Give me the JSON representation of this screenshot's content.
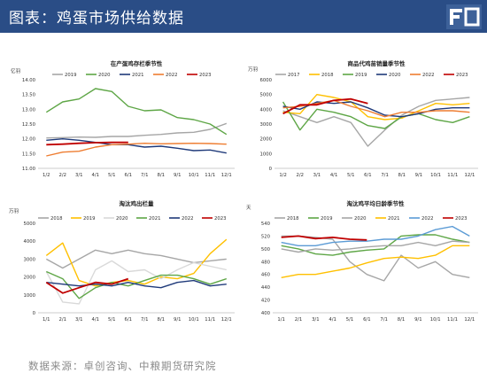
{
  "header": {
    "title": "图表：鸡蛋市场供给数据"
  },
  "source": "数据来源：卓创咨询、中粮期货研究院",
  "chart_data": [
    {
      "type": "line",
      "title": "在产蛋鸡存栏季节性",
      "ylabel": "亿羽",
      "ylim": [
        11.0,
        14.0
      ],
      "yticks": [
        "11.00",
        "11.50",
        "12.00",
        "12.50",
        "13.00",
        "13.50",
        "14.00"
      ],
      "categories": [
        "1/2",
        "2/2",
        "3/1",
        "4/1",
        "5/1",
        "6/1",
        "7/1",
        "8/1",
        "9/1",
        "10/1",
        "11/1",
        "12/1"
      ],
      "legend_position": "top",
      "series": [
        {
          "name": "2019",
          "color": "#a6a6a6",
          "values": [
            12.03,
            12.04,
            12.06,
            12.05,
            12.08,
            12.08,
            12.12,
            12.15,
            12.2,
            12.22,
            12.32,
            12.52
          ]
        },
        {
          "name": "2020",
          "color": "#5ea646",
          "values": [
            12.9,
            13.25,
            13.35,
            13.7,
            13.6,
            13.1,
            12.95,
            12.98,
            12.72,
            12.65,
            12.5,
            12.15
          ]
        },
        {
          "name": "2021",
          "color": "#1f3a7a",
          "values": [
            11.95,
            12.0,
            11.95,
            11.88,
            11.8,
            11.8,
            11.72,
            11.75,
            11.68,
            11.6,
            11.62,
            11.52
          ]
        },
        {
          "name": "2022",
          "color": "#ee7d31",
          "values": [
            11.42,
            11.55,
            11.58,
            11.72,
            11.8,
            11.82,
            11.85,
            11.83,
            11.84,
            11.85,
            11.84,
            11.82
          ]
        },
        {
          "name": "2023",
          "color": "#c00000",
          "values": [
            11.8,
            11.82,
            11.85,
            11.87,
            11.88,
            11.88,
            null,
            null,
            null,
            null,
            null,
            null
          ]
        }
      ]
    },
    {
      "type": "line",
      "title": "商品代鸡苗销量季节性",
      "ylabel": "万羽",
      "ylim": [
        0,
        6000
      ],
      "yticks": [
        "0",
        "1000",
        "2000",
        "3000",
        "4000",
        "5000",
        "6000"
      ],
      "categories": [
        "1/2",
        "2/2",
        "3/1",
        "4/1",
        "5/1",
        "6/1",
        "7/1",
        "8/1",
        "9/1",
        "10/1",
        "11/1",
        "12/1"
      ],
      "legend_position": "top",
      "series": [
        {
          "name": "2017",
          "color": "#a6a6a6",
          "values": [
            3900,
            3500,
            3100,
            3500,
            3100,
            1500,
            2600,
            3600,
            4200,
            4600,
            4700,
            4800
          ]
        },
        {
          "name": "2018",
          "color": "#ffc000",
          "values": [
            3800,
            3700,
            5000,
            4800,
            4500,
            3500,
            3300,
            3400,
            3900,
            4400,
            4300,
            4400
          ]
        },
        {
          "name": "2019",
          "color": "#5ea646",
          "values": [
            4500,
            2600,
            4000,
            3800,
            3500,
            2900,
            2700,
            3500,
            3700,
            3300,
            3100,
            3500
          ]
        },
        {
          "name": "2020",
          "color": "#1f3a7a",
          "values": [
            4200,
            4000,
            4500,
            4400,
            4500,
            4100,
            3600,
            3500,
            3700,
            4000,
            4100,
            4100
          ]
        },
        {
          "name": "2022",
          "color": "#ee7d31",
          "values": [
            4100,
            4200,
            4400,
            4600,
            4200,
            3900,
            3500,
            3800,
            3800,
            3900,
            3900,
            3800
          ]
        },
        {
          "name": "2023",
          "color": "#c00000",
          "values": [
            3700,
            4300,
            4300,
            4600,
            4700,
            4400,
            null,
            null,
            null,
            null,
            null,
            null
          ]
        }
      ]
    },
    {
      "type": "line",
      "title": "淘汰鸡出栏量",
      "ylabel": "万羽",
      "ylim": [
        0,
        5000
      ],
      "yticks": [
        "0",
        "1000",
        "2000",
        "3000",
        "4000",
        "5000"
      ],
      "categories": [
        "1/1",
        "2/1",
        "3/1",
        "4/1",
        "5/1",
        "6/1",
        "7/1",
        "8/1",
        "9/1",
        "10/1",
        "11/1",
        "12/1"
      ],
      "legend_position": "top",
      "series": [
        {
          "name": "2018",
          "color": "#a6a6a6",
          "values": [
            3000,
            2500,
            3000,
            3500,
            3300,
            3500,
            3300,
            3200,
            3000,
            2800,
            2900,
            3000
          ]
        },
        {
          "name": "2019",
          "color": "#ffc000",
          "values": [
            3200,
            3900,
            1800,
            1500,
            1700,
            1800,
            1600,
            2000,
            1900,
            2200,
            3300,
            4100
          ]
        },
        {
          "name": "2020",
          "color": "#d9d9d9",
          "values": [
            2300,
            600,
            500,
            2400,
            2900,
            2300,
            2400,
            1900,
            2400,
            2800,
            2600,
            2400
          ]
        },
        {
          "name": "2021",
          "color": "#5ea646",
          "values": [
            2300,
            1900,
            800,
            1400,
            1700,
            1500,
            1800,
            2100,
            2100,
            1900,
            1600,
            1900
          ]
        },
        {
          "name": "2022",
          "color": "#1f3a7a",
          "values": [
            1700,
            1600,
            1500,
            1600,
            1500,
            1700,
            1500,
            1400,
            1700,
            1800,
            1500,
            1600
          ]
        },
        {
          "name": "2023",
          "color": "#c00000",
          "values": [
            1700,
            1100,
            1400,
            1700,
            1600,
            1900,
            null,
            null,
            null,
            null,
            null,
            null
          ]
        }
      ]
    },
    {
      "type": "line",
      "title": "淘汰鸡平均日龄季节性",
      "ylabel": "天",
      "ylim": [
        400,
        540
      ],
      "yticks": [
        "400",
        "420",
        "440",
        "460",
        "480",
        "500",
        "520",
        "540"
      ],
      "categories": [
        "1/1",
        "2/1",
        "3/1",
        "4/1",
        "5/1",
        "6/1",
        "7/1",
        "8/1",
        "9/1",
        "10/1",
        "11/1",
        "12/1"
      ],
      "legend_position": "top",
      "series": [
        {
          "name": "2018",
          "color": "#a6a6a6",
          "values": [
            520,
            520,
            518,
            515,
            480,
            460,
            450,
            490,
            470,
            480,
            460,
            455
          ]
        },
        {
          "name": "2019",
          "color": "#5ea646",
          "values": [
            505,
            500,
            492,
            490,
            495,
            498,
            500,
            520,
            522,
            522,
            515,
            510
          ]
        },
        {
          "name": "2020",
          "color": "#a6a6a6",
          "values": [
            500,
            495,
            500,
            498,
            500,
            503,
            505,
            505,
            510,
            505,
            512,
            510
          ]
        },
        {
          "name": "2021",
          "color": "#ffc000",
          "values": [
            455,
            460,
            460,
            465,
            470,
            478,
            485,
            487,
            485,
            490,
            505,
            505
          ]
        },
        {
          "name": "2022",
          "color": "#5b9bd5",
          "values": [
            510,
            505,
            505,
            510,
            512,
            512,
            515,
            515,
            520,
            530,
            535,
            520
          ]
        },
        {
          "name": "2023",
          "color": "#c00000",
          "values": [
            518,
            520,
            516,
            518,
            515,
            514,
            null,
            null,
            null,
            null,
            null,
            null
          ]
        }
      ]
    }
  ]
}
